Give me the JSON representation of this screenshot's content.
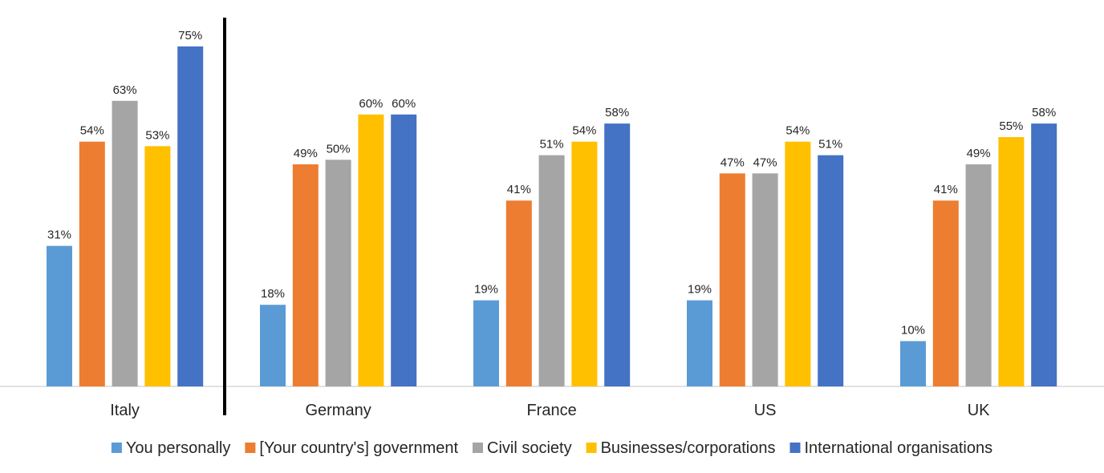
{
  "chart_data": {
    "type": "bar",
    "categories": [
      "Italy",
      "Germany",
      "France",
      "US",
      "UK"
    ],
    "series": [
      {
        "name": "You personally",
        "color": "#5B9BD5",
        "values": [
          31,
          18,
          19,
          19,
          10
        ]
      },
      {
        "name": "[Your country's] government",
        "color": "#ED7D31",
        "values": [
          54,
          49,
          41,
          47,
          41
        ]
      },
      {
        "name": "Civil society",
        "color": "#A5A5A5",
        "values": [
          63,
          50,
          51,
          47,
          49
        ]
      },
      {
        "name": "Businesses/corporations",
        "color": "#FFC000",
        "values": [
          53,
          60,
          54,
          54,
          55
        ]
      },
      {
        "name": "International organisations",
        "color": "#4472C4",
        "values": [
          75,
          60,
          58,
          51,
          58
        ]
      }
    ],
    "value_suffix": "%",
    "ylim": [
      0,
      80
    ],
    "legend_position": "bottom",
    "grid": false,
    "divider_after_category": "Italy"
  }
}
